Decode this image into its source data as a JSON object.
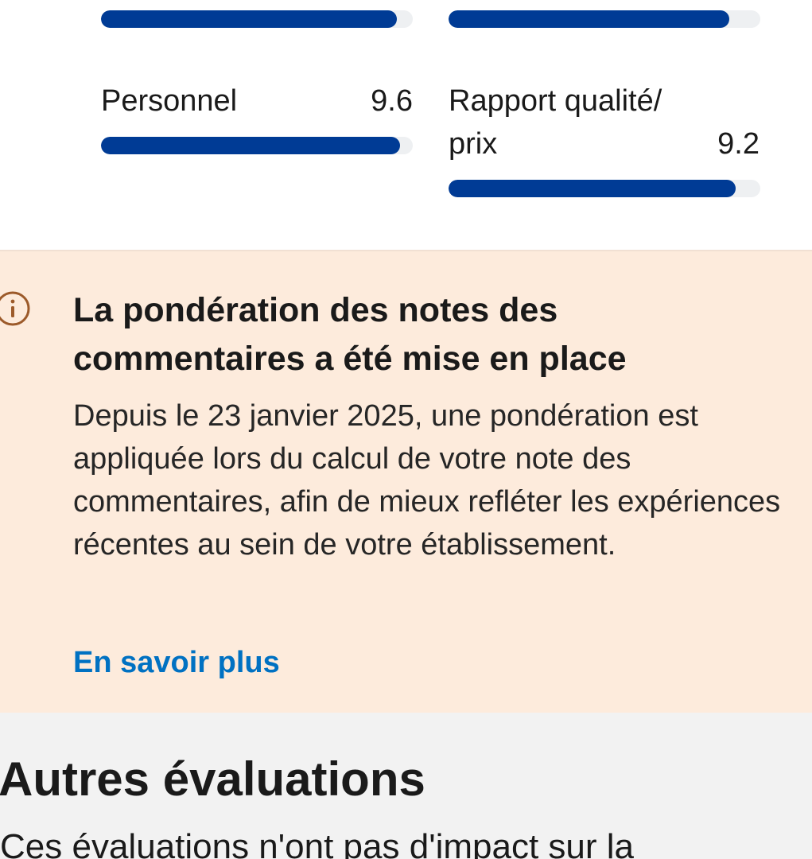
{
  "scores": {
    "top_left": {
      "value": 0.95
    },
    "top_right": {
      "value": 0.9
    },
    "personnel": {
      "label": "Personnel",
      "value_text": "9.6",
      "value": 9.6
    },
    "rapport": {
      "label_line1": "Rapport qualité/",
      "label_line2": "prix",
      "value_text": "9.2",
      "value": 9.2
    },
    "max": 10,
    "bar_color": "#003b95",
    "track_color": "#eef0f2"
  },
  "notice": {
    "icon": "info-icon",
    "title": "La pondération des notes des commentaires a été mise en place",
    "body": "Depuis le 23 janvier 2025, une pondération est appliquée lors du calcul de votre note des commentaires, afin de mieux refléter les expériences récentes au sein de votre établissement.",
    "link": "En savoir plus",
    "background": "#fdebdc",
    "link_color": "#0071c2"
  },
  "other": {
    "title": "Autres évaluations",
    "description": "Ces évaluations n'ont pas d'impact sur la"
  }
}
